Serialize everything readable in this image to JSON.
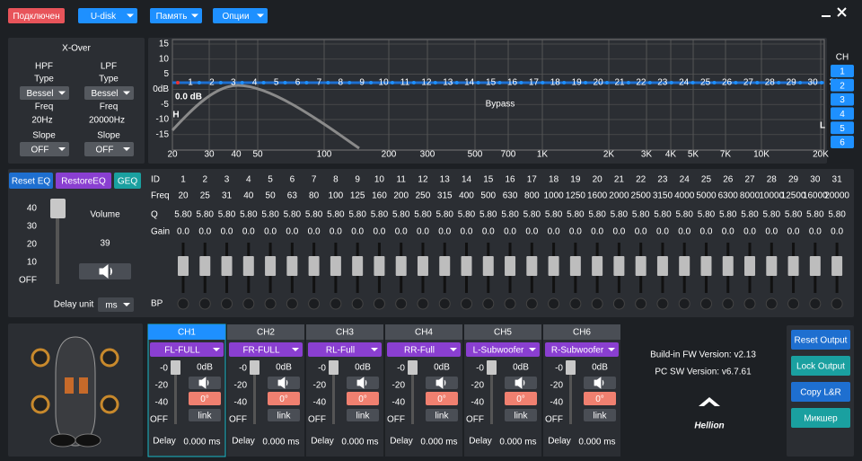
{
  "toolbar": {
    "status": "Подключен",
    "menus": [
      "U-disk",
      "Память",
      "Опции"
    ]
  },
  "xover": {
    "title": "X-Over",
    "type_label": "Type",
    "freq_label": "Freq",
    "slope_label": "Slope",
    "filters": [
      {
        "name": "HPF",
        "type": "Bessel",
        "freq": "20Hz",
        "slope": "OFF"
      },
      {
        "name": "LPF",
        "type": "Bessel",
        "freq": "20000Hz",
        "slope": "OFF"
      }
    ]
  },
  "graph": {
    "y_labels": [
      "15",
      "10",
      "5",
      "0dB",
      "-5",
      "-10",
      "-15"
    ],
    "x_labels": [
      "20",
      "30",
      "40",
      "50",
      "100",
      "200",
      "300",
      "500",
      "700",
      "1K",
      "2K",
      "3K",
      "4K",
      "5K",
      "7K",
      "10K",
      "20K"
    ],
    "gain": "0.0 dB",
    "watermark": "Bypass",
    "hpf_marker": "H",
    "lpf_marker": "L"
  },
  "channel_select": {
    "title": "CH",
    "buttons": [
      "1",
      "2",
      "3",
      "4",
      "5",
      "6"
    ]
  },
  "eq_buttons": [
    "Reset EQ",
    "RestoreEQ",
    "GEQ"
  ],
  "volume": {
    "title": "Volume",
    "value": "39",
    "scale": [
      "40",
      "30",
      "20",
      "10",
      "OFF"
    ],
    "delay_unit_label": "Delay unit",
    "delay_unit": "ms"
  },
  "eq_table": {
    "row_labels": [
      "ID",
      "Freq",
      "Q",
      "Gain",
      "BP"
    ],
    "ids": [
      "1",
      "2",
      "3",
      "4",
      "5",
      "6",
      "7",
      "8",
      "9",
      "10",
      "11",
      "12",
      "13",
      "14",
      "15",
      "16",
      "17",
      "18",
      "19",
      "20",
      "21",
      "22",
      "23",
      "24",
      "25",
      "26",
      "27",
      "28",
      "29",
      "30",
      "31"
    ],
    "freqs": [
      "20",
      "25",
      "31",
      "40",
      "50",
      "63",
      "80",
      "100",
      "125",
      "160",
      "200",
      "250",
      "315",
      "400",
      "500",
      "630",
      "800",
      "1000",
      "1250",
      "1600",
      "2000",
      "2500",
      "3150",
      "4000",
      "5000",
      "6300",
      "8000",
      "10000",
      "12500",
      "16000",
      "20000"
    ],
    "q": [
      "5.80",
      "5.80",
      "5.80",
      "5.80",
      "5.80",
      "5.80",
      "5.80",
      "5.80",
      "5.80",
      "5.80",
      "5.80",
      "5.80",
      "5.80",
      "5.80",
      "5.80",
      "5.80",
      "5.80",
      "5.80",
      "5.80",
      "5.80",
      "5.80",
      "5.80",
      "5.80",
      "5.80",
      "5.80",
      "5.80",
      "5.80",
      "5.80",
      "5.80",
      "5.80",
      "5.80"
    ],
    "gain": [
      "0.0",
      "0.0",
      "0.0",
      "0.0",
      "0.0",
      "0.0",
      "0.0",
      "0.0",
      "0.0",
      "0.0",
      "0.0",
      "0.0",
      "0.0",
      "0.0",
      "0.0",
      "0.0",
      "0.0",
      "0.0",
      "0.0",
      "0.0",
      "0.0",
      "0.0",
      "0.0",
      "0.0",
      "0.0",
      "0.0",
      "0.0",
      "0.0",
      "0.0",
      "0.0",
      "0.0"
    ]
  },
  "channel_scale": [
    "-0",
    "-20",
    "-40",
    "OFF"
  ],
  "channels": [
    {
      "name": "CH1",
      "preset": "FL-FULL",
      "level": "0dB",
      "phase": "0°",
      "link": "link",
      "delay_label": "Delay",
      "delay": "0.000 ms"
    },
    {
      "name": "CH2",
      "preset": "FR-FULL",
      "level": "0dB",
      "phase": "0°",
      "link": "link",
      "delay_label": "Delay",
      "delay": "0.000 ms"
    },
    {
      "name": "CH3",
      "preset": "RL-Full",
      "level": "0dB",
      "phase": "0°",
      "link": "link",
      "delay_label": "Delay",
      "delay": "0.000 ms"
    },
    {
      "name": "CH4",
      "preset": "RR-Full",
      "level": "0dB",
      "phase": "0°",
      "link": "link",
      "delay_label": "Delay",
      "delay": "0.000 ms"
    },
    {
      "name": "CH5",
      "preset": "L-Subwoofer",
      "level": "0dB",
      "phase": "0°",
      "link": "link",
      "delay_label": "Delay",
      "delay": "0.000 ms"
    },
    {
      "name": "CH6",
      "preset": "R-Subwoofer",
      "level": "0dB",
      "phase": "0°",
      "link": "link",
      "delay_label": "Delay",
      "delay": "0.000 ms"
    }
  ],
  "info": {
    "fw": "Build-in FW Version: v2.13",
    "sw": "PC SW Version: v6.7.61",
    "logo": "Hellion"
  },
  "output_buttons": [
    "Reset Output",
    "Lock Output",
    "Copy L&R",
    "Микшер"
  ]
}
